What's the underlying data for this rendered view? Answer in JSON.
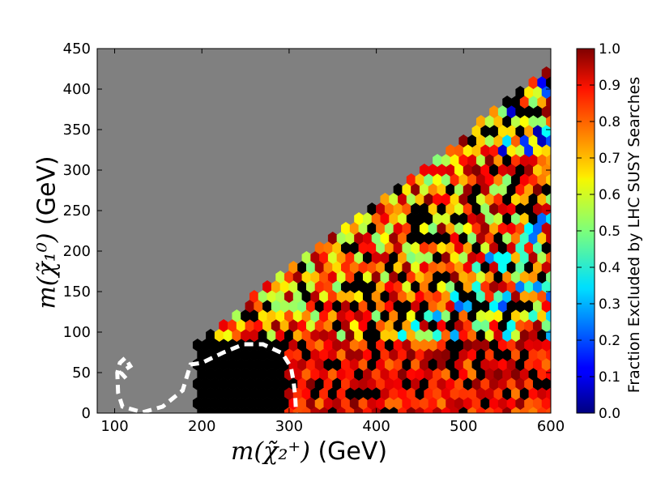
{
  "chart_data": {
    "type": "heatmap",
    "xlabel_math": "m(χ̃₂⁺)",
    "xlabel_unit": "(GeV)",
    "ylabel_math": "m(χ̃₁⁰)",
    "ylabel_unit": "(GeV)",
    "xlim": [
      80,
      600
    ],
    "ylim": [
      0,
      450
    ],
    "x_ticks": [
      100,
      200,
      300,
      400,
      500,
      600
    ],
    "y_ticks": [
      0,
      50,
      100,
      150,
      200,
      250,
      300,
      350,
      400,
      450
    ],
    "x_tick_labels": [
      "100",
      "200",
      "300",
      "400",
      "500",
      "600"
    ],
    "y_tick_labels": [
      "0",
      "50",
      "100",
      "150",
      "200",
      "250",
      "300",
      "350",
      "400",
      "450"
    ],
    "colorbar": {
      "label": "Fraction Excluded by LHC SUSY Searches",
      "range": [
        0.0,
        1.0
      ],
      "ticks": [
        0.0,
        0.1,
        0.2,
        0.3,
        0.4,
        0.5,
        0.6,
        0.7,
        0.8,
        0.9,
        1.0
      ],
      "tick_labels": [
        "0.0",
        "0.1",
        "0.2",
        "0.3",
        "0.4",
        "0.5",
        "0.6",
        "0.7",
        "0.8",
        "0.9",
        "1.0"
      ],
      "colormap": "jet"
    },
    "background_color": "#808080",
    "empty_color": "#000000",
    "hexbin_size_x": 10,
    "hexbin_size_y": 12,
    "populated_region": "triangle above y=0, below diagonal from (200,90) to (580,410), plus band y<90 for x in 200-600",
    "contour": {
      "style": "white dashed",
      "points": [
        [
          113,
          43
        ],
        [
          107,
          50
        ],
        [
          118,
          58
        ],
        [
          112,
          68
        ],
        [
          106,
          62
        ],
        [
          103,
          50
        ],
        [
          104,
          25
        ],
        [
          109,
          8
        ],
        [
          132,
          1
        ],
        [
          155,
          8
        ],
        [
          178,
          28
        ],
        [
          187,
          60
        ],
        [
          200,
          62
        ],
        [
          225,
          75
        ],
        [
          248,
          85
        ],
        [
          270,
          85
        ],
        [
          292,
          74
        ],
        [
          302,
          57
        ],
        [
          305,
          40
        ],
        [
          307,
          20
        ],
        [
          308,
          0
        ]
      ]
    }
  }
}
